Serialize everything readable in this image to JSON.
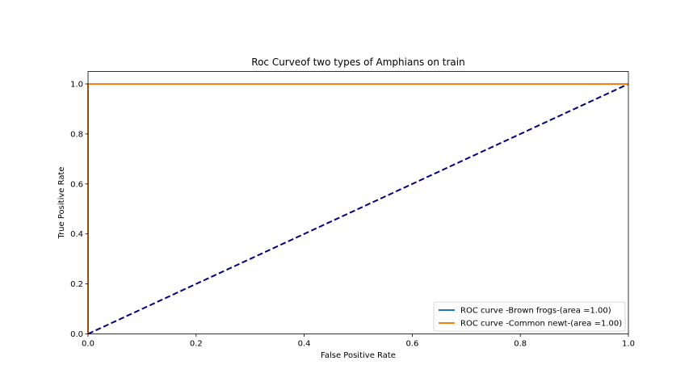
{
  "chart_data": {
    "type": "line",
    "title": "Roc Curveof two types of Amphians on train",
    "xlabel": "False Positive Rate",
    "ylabel": "True Positive Rate",
    "xlim": [
      0.0,
      1.0
    ],
    "ylim": [
      0.0,
      1.05
    ],
    "xticks": [
      0.0,
      0.2,
      0.4,
      0.6,
      0.8,
      1.0
    ],
    "xtick_labels": [
      "0.0",
      "0.2",
      "0.4",
      "0.6",
      "0.8",
      "1.0"
    ],
    "yticks": [
      0.0,
      0.2,
      0.4,
      0.6,
      0.8,
      1.0
    ],
    "ytick_labels": [
      "0.0",
      "0.2",
      "0.4",
      "0.6",
      "0.8",
      "1.0"
    ],
    "grid": false,
    "legend_position": "lower-right",
    "series": [
      {
        "name": "ROC curve -Brown frogs-(area =1.00)",
        "color": "#1f77b4",
        "style": "solid",
        "x": [
          0.0,
          0.0,
          1.0
        ],
        "y": [
          0.0,
          1.0,
          1.0
        ]
      },
      {
        "name": "ROC curve -Common newt-(area =1.00)",
        "color": "#ff7f0e",
        "style": "solid",
        "x": [
          0.0,
          0.0,
          1.0
        ],
        "y": [
          0.0,
          1.0,
          1.0
        ]
      }
    ],
    "reference_line": {
      "color": "#000080",
      "style": "dashed",
      "x": [
        0.0,
        1.0
      ],
      "y": [
        0.0,
        1.0
      ]
    }
  }
}
